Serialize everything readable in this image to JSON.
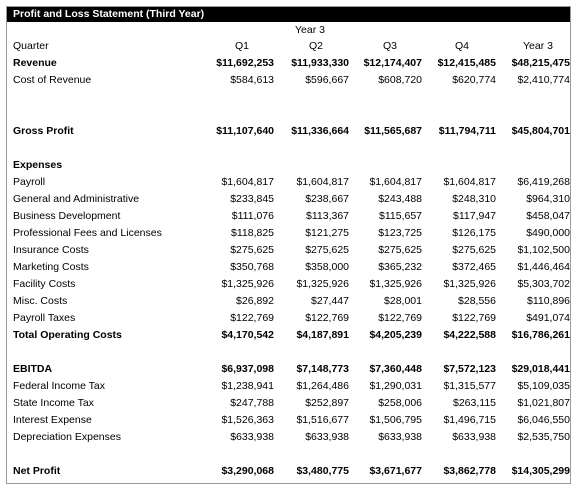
{
  "title": "Profit and Loss Statement (Third Year)",
  "year_label": "Year 3",
  "header": {
    "label": "Quarter",
    "columns": [
      "Q1",
      "Q2",
      "Q3",
      "Q4",
      "Year 3"
    ]
  },
  "sections": [
    {
      "rows": [
        {
          "label": "Revenue",
          "bold": true,
          "values": [
            "$11,692,253",
            "$11,933,330",
            "$12,174,407",
            "$12,415,485",
            "$48,215,475"
          ]
        },
        {
          "label": "Cost of Revenue",
          "bold": false,
          "values": [
            "$584,613",
            "$596,667",
            "$608,720",
            "$620,774",
            "$2,410,774"
          ]
        }
      ]
    },
    {
      "rows": [
        {
          "label": "Gross Profit",
          "bold": true,
          "values": [
            "$11,107,640",
            "$11,336,664",
            "$11,565,687",
            "$11,794,711",
            "$45,804,701"
          ]
        }
      ]
    },
    {
      "rows": [
        {
          "label": "Expenses",
          "bold": true,
          "values": [
            "",
            "",
            "",
            "",
            ""
          ]
        },
        {
          "label": "Payroll",
          "bold": false,
          "values": [
            "$1,604,817",
            "$1,604,817",
            "$1,604,817",
            "$1,604,817",
            "$6,419,268"
          ]
        },
        {
          "label": "General and Administrative",
          "bold": false,
          "values": [
            "$233,845",
            "$238,667",
            "$243,488",
            "$248,310",
            "$964,310"
          ]
        },
        {
          "label": "Business Development",
          "bold": false,
          "values": [
            "$111,076",
            "$113,367",
            "$115,657",
            "$117,947",
            "$458,047"
          ]
        },
        {
          "label": "Professional Fees and Licenses",
          "bold": false,
          "values": [
            "$118,825",
            "$121,275",
            "$123,725",
            "$126,175",
            "$490,000"
          ]
        },
        {
          "label": "Insurance Costs",
          "bold": false,
          "values": [
            "$275,625",
            "$275,625",
            "$275,625",
            "$275,625",
            "$1,102,500"
          ]
        },
        {
          "label": "Marketing Costs",
          "bold": false,
          "values": [
            "$350,768",
            "$358,000",
            "$365,232",
            "$372,465",
            "$1,446,464"
          ]
        },
        {
          "label": "Facility Costs",
          "bold": false,
          "values": [
            "$1,325,926",
            "$1,325,926",
            "$1,325,926",
            "$1,325,926",
            "$5,303,702"
          ]
        },
        {
          "label": "Misc. Costs",
          "bold": false,
          "values": [
            "$26,892",
            "$27,447",
            "$28,001",
            "$28,556",
            "$110,896"
          ]
        },
        {
          "label": "Payroll Taxes",
          "bold": false,
          "values": [
            "$122,769",
            "$122,769",
            "$122,769",
            "$122,769",
            "$491,074"
          ]
        },
        {
          "label": "Total Operating Costs",
          "bold": true,
          "values": [
            "$4,170,542",
            "$4,187,891",
            "$4,205,239",
            "$4,222,588",
            "$16,786,261"
          ]
        }
      ]
    },
    {
      "rows": [
        {
          "label": "EBITDA",
          "bold": true,
          "values": [
            "$6,937,098",
            "$7,148,773",
            "$7,360,448",
            "$7,572,123",
            "$29,018,441"
          ]
        },
        {
          "label": "Federal Income Tax",
          "bold": false,
          "values": [
            "$1,238,941",
            "$1,264,486",
            "$1,290,031",
            "$1,315,577",
            "$5,109,035"
          ]
        },
        {
          "label": "State Income Tax",
          "bold": false,
          "values": [
            "$247,788",
            "$252,897",
            "$258,006",
            "$263,115",
            "$1,021,807"
          ]
        },
        {
          "label": "Interest Expense",
          "bold": false,
          "values": [
            "$1,526,363",
            "$1,516,677",
            "$1,506,795",
            "$1,496,715",
            "$6,046,550"
          ]
        },
        {
          "label": "Depreciation Expenses",
          "bold": false,
          "values": [
            "$633,938",
            "$633,938",
            "$633,938",
            "$633,938",
            "$2,535,750"
          ]
        }
      ]
    },
    {
      "rows": [
        {
          "label": "Net Profit",
          "bold": true,
          "values": [
            "$3,290,068",
            "$3,480,775",
            "$3,671,677",
            "$3,862,778",
            "$14,305,299"
          ]
        }
      ]
    }
  ]
}
